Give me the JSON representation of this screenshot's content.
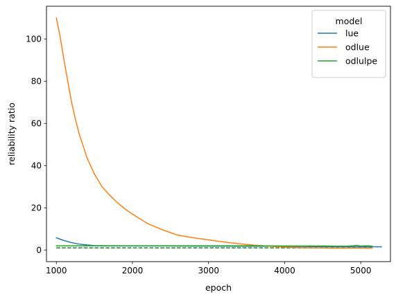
{
  "chart_data": {
    "type": "line",
    "xlabel": "epoch",
    "ylabel": "reliability ratio",
    "xlim": [
      870,
      5390
    ],
    "ylim": [
      -5.5,
      115.5
    ],
    "xticks": [
      1000,
      2000,
      3000,
      4000,
      5000
    ],
    "yticks": [
      0,
      20,
      40,
      60,
      80,
      100
    ],
    "grid": false,
    "legend": {
      "title": "model",
      "placement": "top-right"
    },
    "series": [
      {
        "name": "lue",
        "color": "#1f77b4",
        "x": [
          1000,
          1100,
          1200,
          1300,
          1400,
          1500,
          1700,
          2000,
          2500,
          3000,
          3500,
          4000,
          4500,
          5000,
          5270
        ],
        "y": [
          5.8,
          4.5,
          3.5,
          2.8,
          2.4,
          2.1,
          2.0,
          1.95,
          1.9,
          1.85,
          1.8,
          1.75,
          1.6,
          1.55,
          1.5
        ]
      },
      {
        "name": "odlue",
        "color": "#ff7f0e",
        "x": [
          1000,
          1050,
          1100,
          1150,
          1200,
          1250,
          1300,
          1400,
          1500,
          1600,
          1700,
          1800,
          1900,
          2000,
          2200,
          2400,
          2600,
          2800,
          3000,
          3200,
          3400,
          3600,
          3800,
          4000,
          4200,
          4400,
          4600,
          4800,
          5000,
          5150
        ],
        "y": [
          110,
          101,
          90,
          80,
          70,
          62,
          55,
          44,
          36,
          30,
          26,
          22.5,
          19.5,
          17,
          12.5,
          9.5,
          7,
          5.8,
          4.8,
          3.8,
          3.0,
          2.3,
          1.8,
          1.4,
          1.1,
          1.0,
          0.9,
          0.9,
          0.9,
          0.9
        ]
      },
      {
        "name": "odlulpe",
        "color": "#2ca02c",
        "x": [
          1000,
          1500,
          2000,
          2500,
          3000,
          3500,
          4000,
          4500,
          4800,
          4900,
          4950,
          5000,
          5100,
          5150
        ],
        "y": [
          2.0,
          2.0,
          2.0,
          2.0,
          2.0,
          2.0,
          1.9,
          1.9,
          1.8,
          2.0,
          2.2,
          1.9,
          2.0,
          1.8
        ]
      }
    ],
    "reference_lines": [
      {
        "color": "#1f77b4",
        "style": "dashed",
        "y": 1.0,
        "x": [
          1000,
          5150
        ]
      },
      {
        "color": "#2ca02c",
        "style": "dashed",
        "y": 1.0,
        "x": [
          1000,
          5150
        ]
      }
    ]
  }
}
